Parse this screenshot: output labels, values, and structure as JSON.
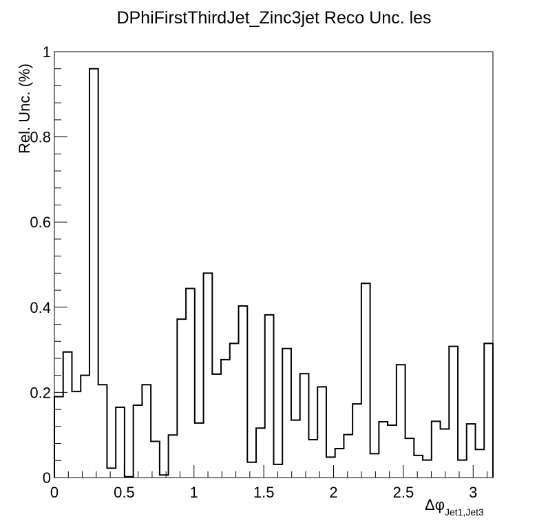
{
  "chart_data": {
    "type": "histogram",
    "title": "DPhiFirstThirdJet_Zinc3jet Reco Unc. les",
    "ylabel": "Rel. Unc. (%)",
    "xlabel_main": "Δφ",
    "xlabel_sub": "Jet1,Jet3",
    "xlim": [
      0,
      3.1416
    ],
    "ylim": [
      0,
      1.0
    ],
    "xticks": [
      "0",
      "0.5",
      "1",
      "1.5",
      "2",
      "2.5",
      "3"
    ],
    "xtick_values": [
      0,
      0.5,
      1,
      1.5,
      2,
      2.5,
      3
    ],
    "yticks": [
      "0",
      "0.2",
      "0.4",
      "0.6",
      "0.8",
      "1"
    ],
    "ytick_values": [
      0,
      0.2,
      0.4,
      0.6,
      0.8,
      1.0
    ],
    "nbins": 50,
    "values": [
      0.19,
      0.295,
      0.202,
      0.24,
      0.96,
      0.218,
      0.022,
      0.165,
      0.002,
      0.17,
      0.218,
      0.085,
      0.006,
      0.1,
      0.372,
      0.444,
      0.128,
      0.48,
      0.243,
      0.277,
      0.315,
      0.403,
      0.036,
      0.116,
      0.382,
      0.031,
      0.303,
      0.135,
      0.244,
      0.089,
      0.213,
      0.048,
      0.068,
      0.101,
      0.173,
      0.456,
      0.056,
      0.131,
      0.123,
      0.265,
      0.092,
      0.052,
      0.041,
      0.132,
      0.114,
      0.308,
      0.041,
      0.126,
      0.066,
      0.315
    ],
    "line_color": "#000000",
    "grid": false
  }
}
